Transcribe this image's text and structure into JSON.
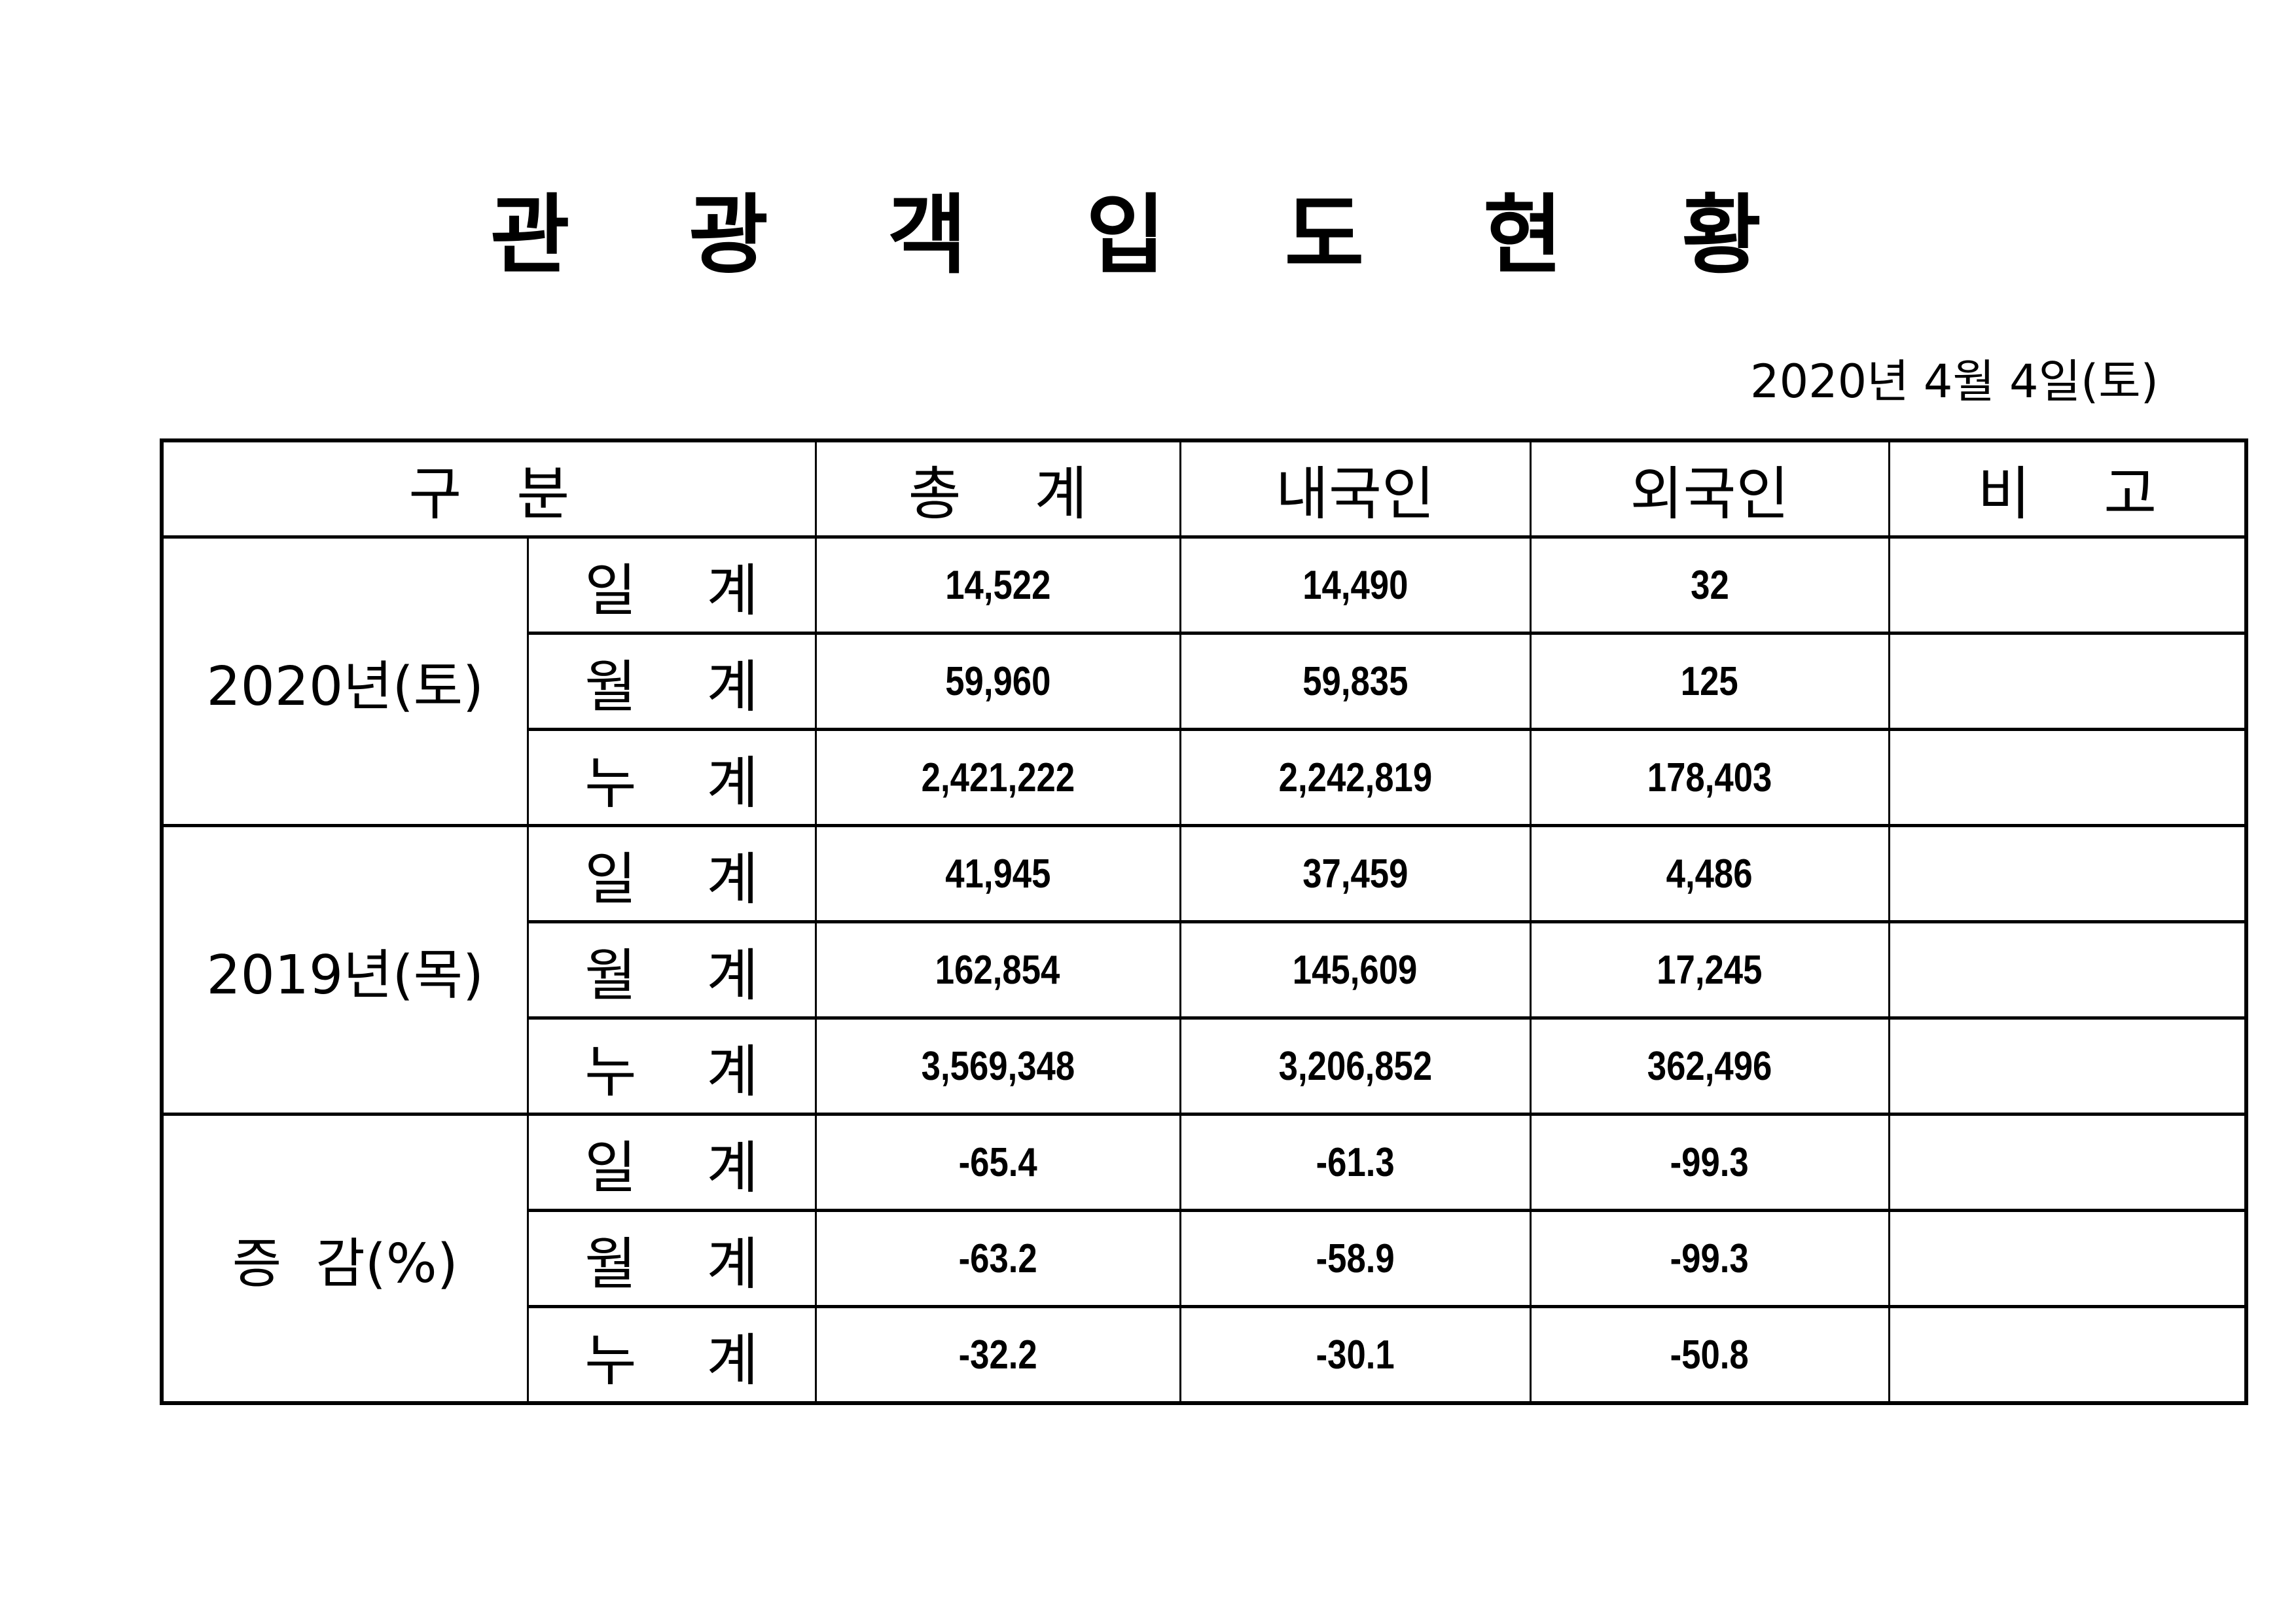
{
  "title": "관 광 객 입 도 현 황",
  "date": "2020년  4월  4일(토)",
  "columns": [
    "구   분",
    "총    계",
    "내국인",
    "외국인",
    "비    고"
  ],
  "groups": [
    {
      "label": "2020년(토)",
      "rows": [
        {
          "label": "일 계",
          "total": "14,522",
          "domestic": "14,490",
          "foreign": "32",
          "note": ""
        },
        {
          "label": "월 계",
          "total": "59,960",
          "domestic": "59,835",
          "foreign": "125",
          "note": ""
        },
        {
          "label": "누 계",
          "total": "2,421,222",
          "domestic": "2,242,819",
          "foreign": "178,403",
          "note": ""
        }
      ]
    },
    {
      "label": "2019년(목)",
      "rows": [
        {
          "label": "일 계",
          "total": "41,945",
          "domestic": "37,459",
          "foreign": "4,486",
          "note": ""
        },
        {
          "label": "월 계",
          "total": "162,854",
          "domestic": "145,609",
          "foreign": "17,245",
          "note": ""
        },
        {
          "label": "누 계",
          "total": "3,569,348",
          "domestic": "3,206,852",
          "foreign": "362,496",
          "note": ""
        }
      ]
    },
    {
      "label": "증  감(%)",
      "rows": [
        {
          "label": "일 계",
          "total": "-65.4",
          "domestic": "-61.3",
          "foreign": "-99.3",
          "note": ""
        },
        {
          "label": "월 계",
          "total": "-63.2",
          "domestic": "-58.9",
          "foreign": "-99.3",
          "note": ""
        },
        {
          "label": "누 계",
          "total": "-32.2",
          "domestic": "-30.1",
          "foreign": "-50.8",
          "note": ""
        }
      ]
    }
  ]
}
